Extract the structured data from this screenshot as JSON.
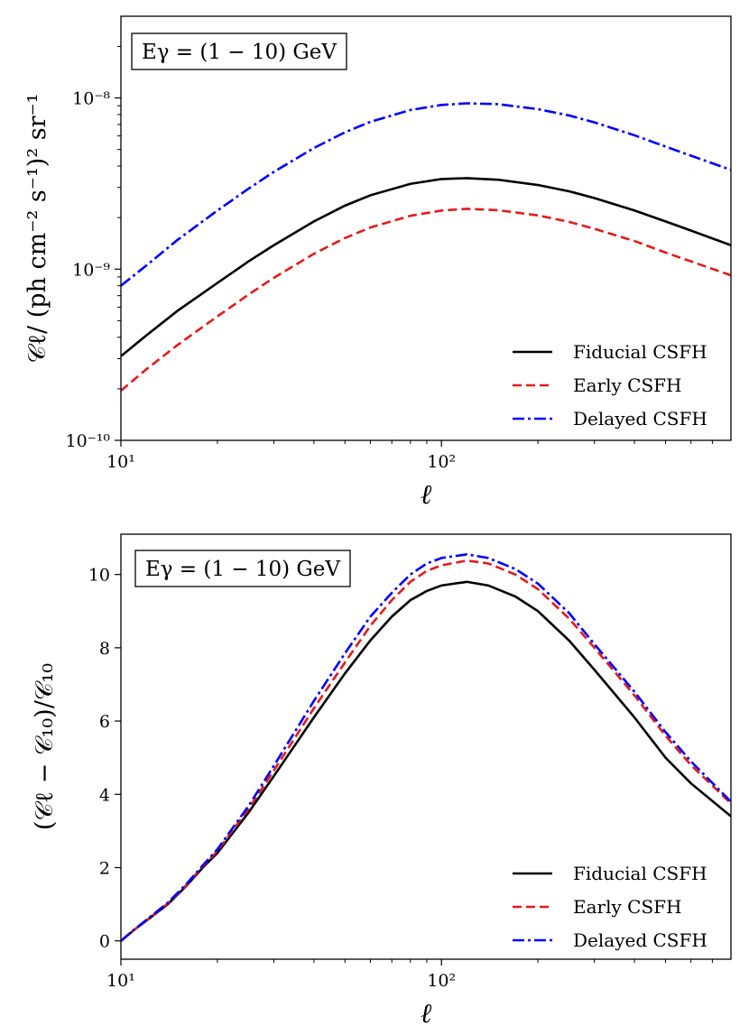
{
  "chart_data": [
    {
      "type": "line",
      "xscale": "log",
      "yscale": "log",
      "xlim": [
        10,
        800
      ],
      "ylim": [
        1e-10,
        3e-08
      ],
      "xlabel": "ℓ",
      "ylabel": "𝒞ℓ/ (ph cm⁻² s⁻¹)² sr⁻¹",
      "annotation": "Eγ = (1 − 10) GeV",
      "legend_position": "lower-right",
      "xticks": [
        {
          "value": 10,
          "label": "10¹"
        },
        {
          "value": 100,
          "label": "10²"
        }
      ],
      "yticks": [
        {
          "value": 1e-10,
          "label": "10⁻¹⁰"
        },
        {
          "value": 1e-09,
          "label": "10⁻⁹"
        },
        {
          "value": 1e-08,
          "label": "10⁻⁸"
        }
      ],
      "x": [
        10,
        12,
        15,
        20,
        25,
        30,
        40,
        50,
        60,
        80,
        100,
        120,
        150,
        200,
        250,
        300,
        400,
        500,
        600,
        800
      ],
      "series": [
        {
          "name": "Fiducial CSFH",
          "color": "#000000",
          "dash": "solid",
          "values": [
            3.1e-10,
            4.1e-10,
            5.7e-10,
            8.3e-10,
            1.11e-09,
            1.38e-09,
            1.9e-09,
            2.35e-09,
            2.7e-09,
            3.15e-09,
            3.36e-09,
            3.4e-09,
            3.33e-09,
            3.1e-09,
            2.85e-09,
            2.6e-09,
            2.2e-09,
            1.9e-09,
            1.68e-09,
            1.38e-09
          ]
        },
        {
          "name": "Early CSFH",
          "color": "#e41a1c",
          "dash": "dashed",
          "values": [
            1.95e-10,
            2.6e-10,
            3.6e-10,
            5.3e-10,
            7.1e-10,
            8.9e-10,
            1.23e-09,
            1.52e-09,
            1.75e-09,
            2.05e-09,
            2.2e-09,
            2.25e-09,
            2.21e-09,
            2.06e-09,
            1.89e-09,
            1.72e-09,
            1.46e-09,
            1.25e-09,
            1.11e-09,
            9.2e-10
          ]
        },
        {
          "name": "Delayed CSFH",
          "color": "#0000ff",
          "dash": "dashdot",
          "values": [
            8e-10,
            1.05e-09,
            1.48e-09,
            2.2e-09,
            2.95e-09,
            3.7e-09,
            5.1e-09,
            6.3e-09,
            7.25e-09,
            8.5e-09,
            9.1e-09,
            9.3e-09,
            9.2e-09,
            8.6e-09,
            7.9e-09,
            7.2e-09,
            6.05e-09,
            5.2e-09,
            4.6e-09,
            3.8e-09
          ]
        }
      ]
    },
    {
      "type": "line",
      "xscale": "log",
      "yscale": "linear",
      "xlim": [
        10,
        800
      ],
      "ylim": [
        -0.5,
        11.1
      ],
      "xlabel": "ℓ",
      "ylabel": "(𝒞ℓ − 𝒞₁₀)/𝒞₁₀",
      "annotation": "Eγ = (1 − 10) GeV",
      "legend_position": "lower-right",
      "xticks": [
        {
          "value": 10,
          "label": "10¹"
        },
        {
          "value": 100,
          "label": "10²"
        }
      ],
      "yticks": [
        {
          "value": 0,
          "label": "0"
        },
        {
          "value": 2,
          "label": "2"
        },
        {
          "value": 4,
          "label": "4"
        },
        {
          "value": 6,
          "label": "6"
        },
        {
          "value": 8,
          "label": "8"
        },
        {
          "value": 10,
          "label": "10"
        }
      ],
      "x": [
        10,
        11,
        12,
        14,
        16,
        18,
        20,
        25,
        30,
        40,
        50,
        60,
        70,
        80,
        90,
        100,
        120,
        140,
        170,
        200,
        250,
        300,
        400,
        500,
        600,
        800
      ],
      "series": [
        {
          "name": "Fiducial CSFH",
          "color": "#000000",
          "dash": "solid",
          "values": [
            0,
            0.3,
            0.55,
            1.0,
            1.5,
            2.0,
            2.4,
            3.5,
            4.5,
            6.1,
            7.3,
            8.2,
            8.85,
            9.3,
            9.55,
            9.7,
            9.8,
            9.7,
            9.4,
            9.0,
            8.2,
            7.4,
            6.1,
            5.0,
            4.3,
            3.4
          ]
        },
        {
          "name": "Early CSFH",
          "color": "#e41a1c",
          "dash": "dashed",
          "values": [
            0,
            0.3,
            0.56,
            1.02,
            1.52,
            2.03,
            2.45,
            3.6,
            4.65,
            6.35,
            7.6,
            8.6,
            9.3,
            9.8,
            10.1,
            10.25,
            10.38,
            10.3,
            10.0,
            9.6,
            8.8,
            8.0,
            6.7,
            5.6,
            4.8,
            3.75
          ]
        },
        {
          "name": "Delayed CSFH",
          "color": "#0000ff",
          "dash": "dashdot",
          "values": [
            0,
            0.31,
            0.57,
            1.04,
            1.55,
            2.06,
            2.5,
            3.68,
            4.78,
            6.55,
            7.85,
            8.85,
            9.5,
            10.0,
            10.3,
            10.45,
            10.55,
            10.45,
            10.15,
            9.75,
            8.95,
            8.1,
            6.8,
            5.7,
            4.9,
            3.8
          ]
        }
      ]
    }
  ]
}
